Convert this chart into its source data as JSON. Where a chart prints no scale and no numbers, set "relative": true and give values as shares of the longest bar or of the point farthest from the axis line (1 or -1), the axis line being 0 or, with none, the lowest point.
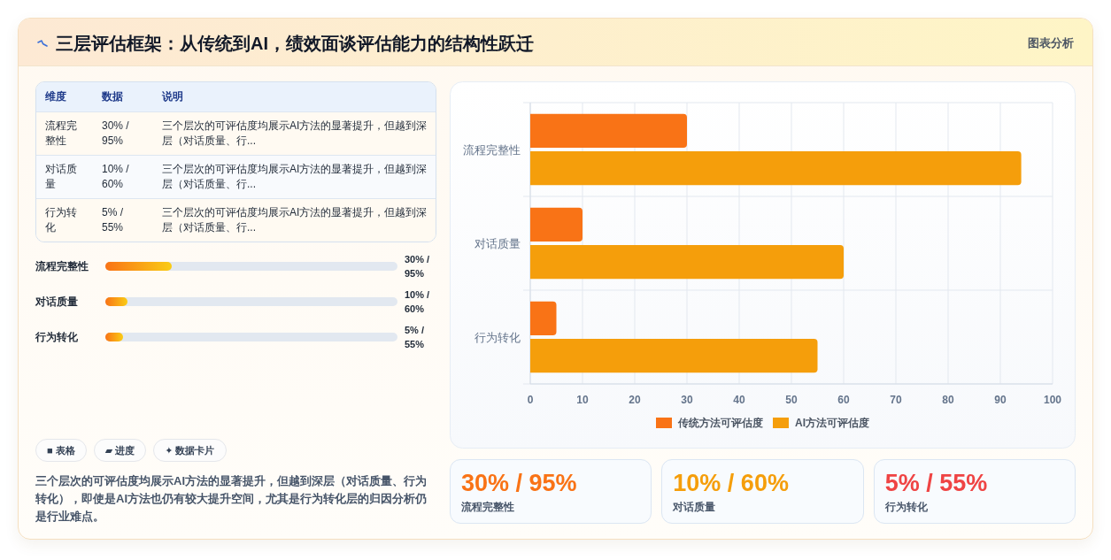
{
  "chart_data": [
    {
      "type": "other",
      "title": "三层评估框架：从传统到AI，绩效面谈评估能力的结构性跃迁",
      "annotations": [
        "图表分析"
      ]
    },
    {
      "type": "other",
      "annotations": [
        "维度",
        "数据",
        "说明",
        "流程完整性",
        "30% / 95%",
        "三个层次的可评估度均展示AI方法的显著提升，但越到深层（对话质量、行...",
        "对话质量",
        "10% / 60%",
        "三个层次的可评估度均展示AI方法的显著提升，但越到深层（对话质量、行...",
        "行为转化",
        "5% / 55%",
        "三个层次的可评估度均展示AI方法的显著提升，但越到深层（对话质量、行..."
      ]
    },
    {
      "type": "bar",
      "orientation": "horizontal",
      "relative": true,
      "categories": [
        "流程完整性",
        "对话质量",
        "行为转化"
      ],
      "values": [
        1,
        0.33,
        0.27
      ],
      "color": "#f97316",
      "annotations": [
        "30% / 95%",
        "10% / 60%",
        "5% / 55%"
      ]
    },
    {
      "type": "other",
      "annotations": [
        "■ 表格",
        "▰ 进度",
        "✦ 数据卡片",
        "三个层次的可评估度均展示AI方法的显著提升，但越到深层（对话质量、行为转化），即使是AI方法也仍有较大提升空间，尤其是行为转化层的归因分析仍是行业难点。"
      ]
    },
    {
      "type": "bar",
      "orientation": "horizontal",
      "categories": [
        "流程完整性",
        "对话质量",
        "行为转化"
      ],
      "series": [
        {
          "name": "传统方法可评估度",
          "color": "#f97316",
          "values": [
            30,
            10,
            5
          ]
        },
        {
          "name": "AI方法可评估度",
          "color": "#f59e0b",
          "values": [
            94,
            60,
            55
          ]
        }
      ],
      "xlim": [
        0,
        100
      ],
      "xticks": [
        0,
        10,
        20,
        30,
        40,
        50,
        60,
        70,
        80,
        90,
        100
      ],
      "grid": true,
      "legend": "bottom"
    },
    {
      "type": "other",
      "annotations": [
        "30% / 95%",
        "流程完整性",
        "10% / 60%",
        "对话质量",
        "5% / 55%",
        "行为转化"
      ],
      "colors": [
        "#f97316",
        "#f59e0b",
        "#ef4444"
      ]
    }
  ]
}
